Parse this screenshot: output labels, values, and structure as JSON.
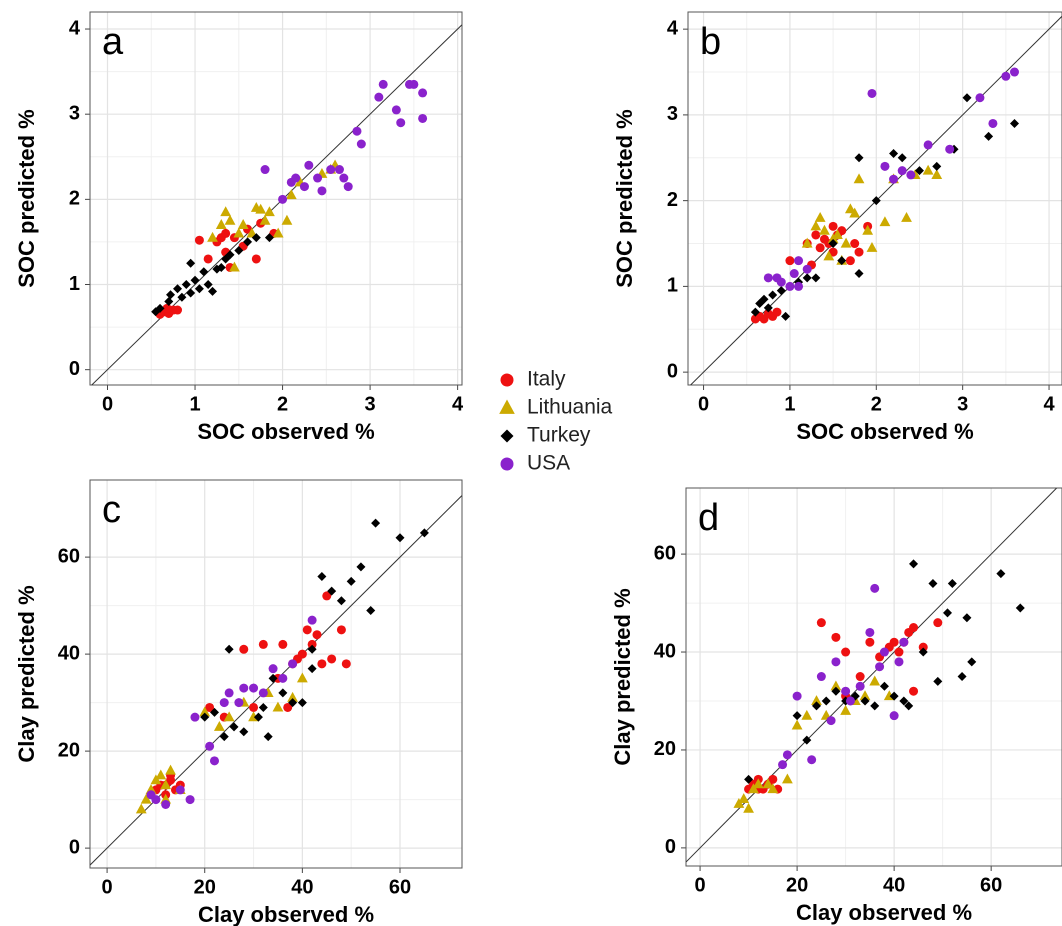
{
  "legend": {
    "position": "center",
    "series": [
      {
        "name": "Italy",
        "color": "#ee1111",
        "marker": "circle"
      },
      {
        "name": "Lithuania",
        "color": "#ccaa00",
        "marker": "triangle"
      },
      {
        "name": "Turkey",
        "color": "#000000",
        "marker": "diamond"
      },
      {
        "name": "USA",
        "color": "#8a22cc",
        "marker": "circle"
      }
    ]
  },
  "chart_data": [
    {
      "type": "scatter",
      "label": "a",
      "xlabel": "SOC observed %",
      "ylabel": "SOC predicted %",
      "xlim": [
        -0.2,
        4.05
      ],
      "ylim": [
        -0.18,
        4.2
      ],
      "xticks": [
        0,
        1,
        2,
        3,
        4
      ],
      "yticks": [
        0,
        1,
        2,
        3,
        4
      ],
      "grid": true,
      "identity_line": true,
      "series": [
        {
          "x": [
            0.6,
            0.65,
            0.7,
            0.75,
            0.8,
            0.68,
            1.05,
            1.15,
            1.25,
            1.3,
            1.35,
            1.4,
            1.45,
            1.55,
            1.6,
            1.7,
            1.75,
            1.9,
            1.35
          ],
          "y": [
            0.65,
            0.68,
            0.66,
            0.7,
            0.7,
            0.72,
            1.52,
            1.3,
            1.5,
            1.55,
            1.6,
            1.2,
            1.55,
            1.45,
            1.65,
            1.3,
            1.72,
            1.6,
            1.38
          ]
        },
        {
          "x": [
            1.2,
            1.3,
            1.35,
            1.4,
            1.5,
            1.55,
            1.65,
            1.7,
            1.75,
            1.8,
            1.85,
            1.95,
            2.05,
            2.1,
            2.2,
            2.45,
            2.55,
            2.6,
            1.45
          ],
          "y": [
            1.55,
            1.7,
            1.85,
            1.75,
            1.6,
            1.7,
            1.6,
            1.9,
            1.88,
            1.75,
            1.85,
            1.6,
            1.75,
            2.05,
            2.2,
            2.3,
            2.35,
            2.4,
            1.2
          ]
        },
        {
          "x": [
            0.55,
            0.6,
            0.7,
            0.72,
            0.8,
            0.85,
            0.9,
            0.95,
            1.0,
            1.05,
            1.1,
            1.15,
            1.2,
            1.25,
            1.3,
            1.35,
            1.4,
            1.5,
            1.6,
            1.7,
            1.85,
            0.95
          ],
          "y": [
            0.68,
            0.72,
            0.8,
            0.88,
            0.95,
            0.85,
            1.0,
            0.9,
            1.05,
            0.95,
            1.15,
            1.0,
            0.92,
            1.18,
            1.2,
            1.3,
            1.35,
            1.4,
            1.5,
            1.55,
            1.55,
            1.25
          ]
        },
        {
          "x": [
            1.8,
            2.0,
            2.1,
            2.15,
            2.25,
            2.3,
            2.4,
            2.45,
            2.55,
            2.65,
            2.7,
            2.75,
            2.85,
            2.9,
            3.1,
            3.15,
            3.3,
            3.35,
            3.45,
            3.5,
            3.6,
            3.6
          ],
          "y": [
            2.35,
            2.0,
            2.2,
            2.25,
            2.15,
            2.4,
            2.25,
            2.1,
            2.35,
            2.35,
            2.25,
            2.15,
            2.8,
            2.65,
            3.2,
            3.35,
            3.05,
            2.9,
            3.35,
            3.35,
            3.25,
            2.95
          ]
        }
      ]
    },
    {
      "type": "scatter",
      "label": "b",
      "xlabel": "SOC observed %",
      "ylabel": "SOC predicted %",
      "xlim": [
        -0.18,
        4.15
      ],
      "ylim": [
        -0.15,
        4.2
      ],
      "xticks": [
        0,
        1,
        2,
        3,
        4
      ],
      "yticks": [
        0,
        1,
        2,
        3,
        4
      ],
      "grid": true,
      "identity_line": true,
      "series": [
        {
          "x": [
            0.6,
            0.65,
            0.7,
            0.75,
            0.8,
            0.85,
            1.0,
            1.2,
            1.3,
            1.35,
            1.4,
            1.45,
            1.5,
            1.55,
            1.6,
            1.7,
            1.75,
            1.8,
            1.9,
            1.25,
            1.5
          ],
          "y": [
            0.62,
            0.65,
            0.62,
            0.68,
            0.65,
            0.7,
            1.3,
            1.5,
            1.6,
            1.45,
            1.55,
            1.5,
            1.4,
            1.6,
            1.65,
            1.3,
            1.5,
            1.4,
            1.7,
            1.25,
            1.7
          ]
        },
        {
          "x": [
            1.2,
            1.3,
            1.35,
            1.4,
            1.5,
            1.55,
            1.6,
            1.65,
            1.7,
            1.75,
            1.8,
            1.9,
            1.95,
            2.1,
            2.2,
            2.35,
            2.45,
            2.6,
            2.7,
            1.45
          ],
          "y": [
            1.5,
            1.7,
            1.8,
            1.65,
            1.55,
            1.6,
            1.3,
            1.5,
            1.9,
            1.85,
            2.25,
            1.65,
            1.45,
            1.75,
            2.25,
            1.8,
            2.3,
            2.35,
            2.3,
            1.35
          ]
        },
        {
          "x": [
            0.6,
            0.65,
            0.7,
            0.75,
            0.8,
            0.9,
            0.95,
            1.0,
            1.1,
            1.2,
            1.3,
            1.5,
            1.6,
            1.8,
            1.8,
            2.0,
            2.1,
            2.2,
            2.3,
            2.5,
            2.7,
            2.9,
            3.05,
            3.3,
            3.6
          ],
          "y": [
            0.7,
            0.8,
            0.85,
            0.75,
            0.9,
            0.95,
            0.65,
            1.0,
            1.05,
            1.1,
            1.1,
            1.5,
            1.3,
            2.5,
            1.15,
            2.0,
            2.4,
            2.55,
            2.5,
            2.35,
            2.4,
            2.6,
            3.2,
            2.75,
            2.9
          ]
        },
        {
          "x": [
            0.75,
            0.85,
            0.9,
            1.0,
            1.05,
            1.1,
            1.2,
            1.95,
            2.1,
            2.2,
            2.3,
            2.4,
            2.6,
            2.85,
            3.2,
            3.35,
            3.5,
            3.6,
            1.1
          ],
          "y": [
            1.1,
            1.1,
            1.05,
            1.0,
            1.15,
            1.3,
            1.2,
            3.25,
            2.4,
            2.25,
            2.35,
            2.3,
            2.65,
            2.6,
            3.2,
            2.9,
            3.45,
            3.5,
            1.0
          ]
        }
      ]
    },
    {
      "type": "scatter",
      "label": "c",
      "xlabel": "Clay observed %",
      "ylabel": "Clay predicted %",
      "xlim": [
        -3.5,
        72.7
      ],
      "ylim": [
        -4.1,
        75.9
      ],
      "xticks": [
        0,
        20,
        40,
        60
      ],
      "yticks": [
        0,
        20,
        40,
        60
      ],
      "grid": true,
      "identity_line": true,
      "series": [
        {
          "x": [
            10,
            11,
            12,
            13,
            14,
            12,
            15,
            13,
            21,
            24,
            28,
            30,
            32,
            35,
            36,
            38,
            39,
            40,
            41,
            42,
            43,
            44,
            46,
            45,
            48,
            49,
            37
          ],
          "y": [
            12,
            13,
            11,
            14,
            12,
            13,
            13,
            15,
            29,
            27,
            41,
            29,
            42,
            35,
            42,
            38,
            39,
            40,
            45,
            42,
            44,
            38,
            39,
            52,
            45,
            38,
            29
          ]
        },
        {
          "x": [
            7,
            8,
            9,
            10,
            11,
            12,
            13,
            15,
            20,
            23,
            25,
            28,
            30,
            33,
            35,
            38,
            40,
            12
          ],
          "y": [
            8,
            10,
            12,
            14,
            15,
            13,
            16,
            12,
            28,
            25,
            27,
            30,
            27,
            32,
            29,
            31,
            35,
            10
          ]
        },
        {
          "x": [
            20,
            22,
            24,
            25,
            26,
            27,
            28,
            30,
            31,
            32,
            33,
            34,
            36,
            38,
            40,
            42,
            44,
            46,
            48,
            50,
            52,
            54,
            55,
            60,
            65,
            42
          ],
          "y": [
            27,
            28,
            23,
            41,
            25,
            30,
            24,
            33,
            27,
            29,
            23,
            35,
            32,
            30,
            30,
            37,
            56,
            53,
            51,
            55,
            58,
            49,
            67,
            64,
            65,
            41
          ]
        },
        {
          "x": [
            10,
            12,
            15,
            17,
            18,
            21,
            22,
            24,
            25,
            27,
            28,
            30,
            32,
            34,
            36,
            38,
            42,
            9
          ],
          "y": [
            10,
            9,
            12,
            10,
            27,
            21,
            18,
            30,
            32,
            30,
            33,
            33,
            32,
            37,
            35,
            38,
            47,
            11
          ]
        }
      ]
    },
    {
      "type": "scatter",
      "label": "d",
      "xlabel": "Clay observed %",
      "ylabel": "Clay predicted %",
      "xlim": [
        -2.9,
        74.6
      ],
      "ylim": [
        -3.7,
        73.5
      ],
      "xticks": [
        0,
        20,
        40,
        60
      ],
      "yticks": [
        0,
        20,
        40,
        60
      ],
      "grid": true,
      "identity_line": true,
      "series": [
        {
          "x": [
            10,
            11,
            12,
            13,
            14,
            15,
            16,
            12,
            25,
            28,
            30,
            33,
            35,
            37,
            39,
            40,
            41,
            42,
            43,
            44,
            44,
            46,
            49,
            30
          ],
          "y": [
            12,
            13,
            14,
            12,
            13,
            14,
            12,
            12,
            46,
            43,
            40,
            35,
            42,
            39,
            41,
            42,
            40,
            42,
            44,
            32,
            45,
            41,
            46,
            31
          ]
        },
        {
          "x": [
            8,
            9,
            10,
            11,
            12,
            14,
            18,
            20,
            22,
            24,
            26,
            28,
            30,
            32,
            34,
            36,
            39,
            15
          ],
          "y": [
            9,
            10,
            8,
            12,
            13,
            13,
            14,
            25,
            27,
            30,
            27,
            33,
            28,
            30,
            31,
            34,
            31,
            12
          ]
        },
        {
          "x": [
            10,
            20,
            22,
            24,
            26,
            28,
            30,
            32,
            34,
            36,
            38,
            40,
            42,
            44,
            46,
            48,
            49,
            51,
            52,
            54,
            55,
            56,
            62,
            66,
            43
          ],
          "y": [
            14,
            27,
            22,
            29,
            30,
            32,
            30,
            31,
            30,
            29,
            33,
            31,
            30,
            58,
            40,
            54,
            34,
            48,
            54,
            35,
            47,
            38,
            56,
            49,
            29
          ]
        },
        {
          "x": [
            17,
            18,
            20,
            23,
            25,
            27,
            28,
            30,
            31,
            33,
            35,
            36,
            37,
            38,
            40,
            41,
            42
          ],
          "y": [
            17,
            19,
            31,
            18,
            35,
            26,
            38,
            32,
            30,
            33,
            44,
            53,
            37,
            40,
            27,
            38,
            42
          ]
        }
      ]
    }
  ]
}
